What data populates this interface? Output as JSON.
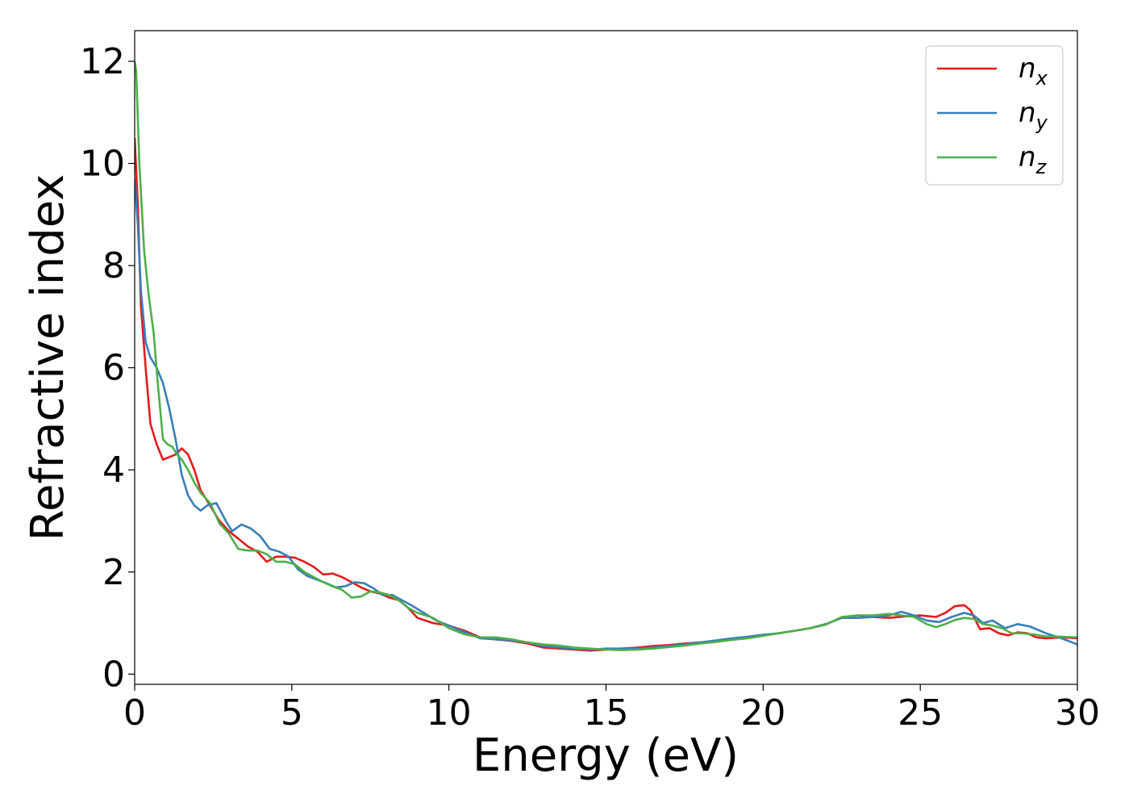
{
  "chart_data": {
    "type": "line",
    "title": "",
    "xlabel": "Energy (eV)",
    "ylabel": "Refractive index",
    "xlim": [
      0,
      30
    ],
    "ylim": [
      -0.2,
      12.6
    ],
    "xticks": [
      0,
      5,
      10,
      15,
      20,
      25,
      30
    ],
    "yticks": [
      0,
      2,
      4,
      6,
      8,
      10,
      12
    ],
    "grid": false,
    "legend_position": "top-right",
    "series": [
      {
        "name": "n_x",
        "label_base": "n",
        "label_sub": "x",
        "color": "#e41a1c",
        "x": [
          0,
          0.1,
          0.2,
          0.35,
          0.5,
          0.7,
          0.9,
          1.1,
          1.3,
          1.5,
          1.7,
          1.9,
          2.1,
          2.4,
          2.7,
          3.0,
          3.3,
          3.6,
          3.9,
          4.2,
          4.5,
          4.8,
          5.1,
          5.4,
          5.7,
          6.0,
          6.3,
          6.6,
          6.9,
          7.2,
          7.5,
          7.8,
          8.1,
          8.4,
          8.7,
          9.0,
          9.5,
          10.0,
          10.5,
          11.0,
          11.5,
          12.0,
          12.5,
          13.0,
          13.5,
          14.0,
          14.5,
          15.0,
          15.5,
          16.0,
          16.5,
          17.0,
          17.5,
          18.0,
          18.5,
          19.0,
          19.5,
          20.0,
          20.5,
          21.0,
          21.5,
          22.0,
          22.5,
          23.0,
          23.5,
          24.0,
          24.5,
          25.0,
          25.5,
          25.8,
          26.1,
          26.4,
          26.6,
          26.9,
          27.2,
          27.5,
          27.8,
          28.1,
          28.4,
          28.7,
          29.0,
          29.5,
          30.0
        ],
        "y": [
          10.5,
          9.2,
          7.2,
          6.0,
          4.9,
          4.5,
          4.2,
          4.25,
          4.3,
          4.42,
          4.3,
          4.0,
          3.6,
          3.3,
          3.0,
          2.8,
          2.65,
          2.5,
          2.4,
          2.2,
          2.3,
          2.3,
          2.28,
          2.2,
          2.1,
          1.95,
          1.97,
          1.9,
          1.8,
          1.7,
          1.62,
          1.58,
          1.5,
          1.45,
          1.3,
          1.1,
          1.0,
          0.95,
          0.85,
          0.72,
          0.68,
          0.65,
          0.6,
          0.52,
          0.5,
          0.48,
          0.46,
          0.48,
          0.5,
          0.52,
          0.55,
          0.57,
          0.6,
          0.62,
          0.65,
          0.68,
          0.72,
          0.76,
          0.8,
          0.85,
          0.9,
          0.98,
          1.1,
          1.15,
          1.12,
          1.1,
          1.13,
          1.15,
          1.12,
          1.2,
          1.33,
          1.35,
          1.25,
          0.88,
          0.9,
          0.8,
          0.76,
          0.82,
          0.8,
          0.72,
          0.7,
          0.72,
          0.7
        ]
      },
      {
        "name": "n_y",
        "label_base": "n",
        "label_sub": "y",
        "color": "#377eb8",
        "x": [
          0,
          0.1,
          0.2,
          0.35,
          0.5,
          0.7,
          0.9,
          1.1,
          1.3,
          1.5,
          1.7,
          1.9,
          2.1,
          2.3,
          2.6,
          2.9,
          3.1,
          3.4,
          3.7,
          4.0,
          4.3,
          4.6,
          4.9,
          5.2,
          5.5,
          5.8,
          6.1,
          6.4,
          6.7,
          7.0,
          7.3,
          7.6,
          7.9,
          8.2,
          8.5,
          8.8,
          9.2,
          9.6,
          10.0,
          10.5,
          11.0,
          11.5,
          12.0,
          12.5,
          13.0,
          13.5,
          14.0,
          14.5,
          15.0,
          15.5,
          16.0,
          16.5,
          17.0,
          17.5,
          18.0,
          18.5,
          19.0,
          19.5,
          20.0,
          20.5,
          21.0,
          21.5,
          22.0,
          22.5,
          23.0,
          23.5,
          24.0,
          24.4,
          24.8,
          25.2,
          25.6,
          26.0,
          26.4,
          26.7,
          27.0,
          27.3,
          27.7,
          28.1,
          28.5,
          29.0,
          29.5,
          30.0
        ],
        "y": [
          9.7,
          8.8,
          7.5,
          6.5,
          6.2,
          6.0,
          5.7,
          5.2,
          4.6,
          3.9,
          3.5,
          3.3,
          3.2,
          3.3,
          3.35,
          3.0,
          2.8,
          2.93,
          2.85,
          2.7,
          2.45,
          2.4,
          2.3,
          2.05,
          1.92,
          1.85,
          1.78,
          1.7,
          1.72,
          1.8,
          1.78,
          1.68,
          1.55,
          1.55,
          1.45,
          1.35,
          1.2,
          1.05,
          0.95,
          0.82,
          0.7,
          0.68,
          0.66,
          0.62,
          0.55,
          0.52,
          0.5,
          0.48,
          0.5,
          0.5,
          0.5,
          0.52,
          0.55,
          0.58,
          0.62,
          0.66,
          0.7,
          0.73,
          0.77,
          0.8,
          0.85,
          0.9,
          0.98,
          1.1,
          1.1,
          1.12,
          1.15,
          1.22,
          1.15,
          1.05,
          1.02,
          1.12,
          1.2,
          1.15,
          1.0,
          1.05,
          0.9,
          0.98,
          0.93,
          0.8,
          0.7,
          0.58
        ]
      },
      {
        "name": "n_z",
        "label_base": "n",
        "label_sub": "z",
        "color": "#4daf4a",
        "x": [
          0,
          0.05,
          0.15,
          0.3,
          0.45,
          0.6,
          0.75,
          0.9,
          1.05,
          1.2,
          1.35,
          1.5,
          1.7,
          1.9,
          2.1,
          2.4,
          2.7,
          3.0,
          3.3,
          3.6,
          3.9,
          4.2,
          4.5,
          4.8,
          5.1,
          5.4,
          5.7,
          6.0,
          6.3,
          6.6,
          6.9,
          7.2,
          7.5,
          7.8,
          8.1,
          8.4,
          8.7,
          9.0,
          9.5,
          10.0,
          10.5,
          11.0,
          11.5,
          12.0,
          12.5,
          13.0,
          13.5,
          14.0,
          14.5,
          15.0,
          15.5,
          16.0,
          16.5,
          17.0,
          17.5,
          18.0,
          18.5,
          19.0,
          19.5,
          20.0,
          20.5,
          21.0,
          21.5,
          22.0,
          22.5,
          23.0,
          23.5,
          24.0,
          24.4,
          24.8,
          25.2,
          25.5,
          25.8,
          26.1,
          26.4,
          26.7,
          27.0,
          27.3,
          27.6,
          27.9,
          28.2,
          28.6,
          29.0,
          29.5,
          30.0
        ],
        "y": [
          12.0,
          11.8,
          10.0,
          8.3,
          7.4,
          6.7,
          5.6,
          4.6,
          4.5,
          4.45,
          4.3,
          4.2,
          4.0,
          3.75,
          3.55,
          3.35,
          2.95,
          2.75,
          2.45,
          2.42,
          2.42,
          2.35,
          2.2,
          2.2,
          2.15,
          2.0,
          1.9,
          1.8,
          1.72,
          1.65,
          1.5,
          1.52,
          1.62,
          1.6,
          1.55,
          1.45,
          1.3,
          1.2,
          1.1,
          0.9,
          0.78,
          0.72,
          0.72,
          0.68,
          0.62,
          0.58,
          0.56,
          0.52,
          0.5,
          0.48,
          0.47,
          0.48,
          0.5,
          0.53,
          0.56,
          0.6,
          0.63,
          0.67,
          0.7,
          0.75,
          0.8,
          0.85,
          0.9,
          0.97,
          1.12,
          1.15,
          1.15,
          1.18,
          1.15,
          1.12,
          0.98,
          0.92,
          0.98,
          1.06,
          1.1,
          1.08,
          0.98,
          0.95,
          0.9,
          0.8,
          0.8,
          0.78,
          0.74,
          0.73,
          0.72
        ]
      }
    ]
  }
}
